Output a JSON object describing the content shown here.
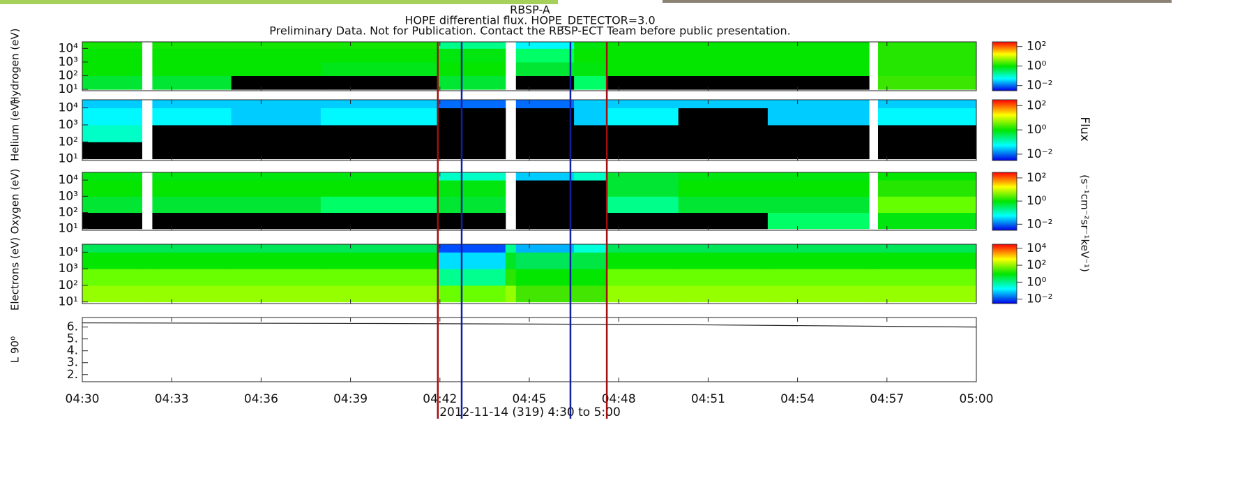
{
  "title": [
    "RBSP-A",
    "HOPE differential flux. HOPE_DETECTOR=3.0",
    "Preliminary Data. Not for Publication. Contact the RBSP-ECT Team before public presentation."
  ],
  "xlabel": "2012-11-14 (319) 4:30 to 5:00",
  "colorbar_label": "Flux",
  "colorbar_units": "(s⁻¹cm⁻²sr⁻¹keV⁻¹)",
  "xlim": [
    0,
    30
  ],
  "xticks": [
    {
      "value": 0,
      "label": "04:30"
    },
    {
      "value": 3,
      "label": "04:33"
    },
    {
      "value": 6,
      "label": "04:36"
    },
    {
      "value": 9,
      "label": "04:39"
    },
    {
      "value": 12,
      "label": "04:42"
    },
    {
      "value": 15,
      "label": "04:45"
    },
    {
      "value": 18,
      "label": "04:48"
    },
    {
      "value": 21,
      "label": "04:51"
    },
    {
      "value": 24,
      "label": "04:54"
    },
    {
      "value": 27,
      "label": "04:57"
    },
    {
      "value": 30,
      "label": "05:00"
    }
  ],
  "vertical_lines": [
    {
      "x": 11.93,
      "color": "#a01010"
    },
    {
      "x": 12.73,
      "color": "#1020a0"
    },
    {
      "x": 16.38,
      "color": "#1020a0"
    },
    {
      "x": 17.6,
      "color": "#a01010"
    }
  ],
  "chart_data": [
    {
      "type": "spectrogram",
      "ylabel": "Hydrogen (eV)",
      "log_y": true,
      "x_bins": [
        0,
        2,
        2.35,
        5,
        8,
        11.9,
        14.2,
        14.55,
        16.5,
        17.6,
        20,
        23,
        26.4,
        26.7,
        30
      ],
      "energy_bins": [
        10,
        100,
        1000,
        10000,
        30000
      ],
      "values": [
        [
          0.5,
          null,
          0.5,
          0,
          0,
          0.5,
          null,
          0,
          0.3,
          0,
          0,
          0,
          null,
          2
        ],
        [
          1,
          null,
          1,
          1,
          0.7,
          1,
          null,
          0.5,
          0.8,
          1,
          1,
          1,
          null,
          1.5
        ],
        [
          1,
          null,
          1,
          1,
          1,
          0.8,
          null,
          0.3,
          1,
          1,
          1,
          1,
          null,
          1.5
        ],
        [
          1.2,
          null,
          1.2,
          1.2,
          1.2,
          0.2,
          null,
          0.05,
          0.8,
          1,
          1,
          1,
          null,
          1.5
        ]
      ],
      "ylim": [
        8,
        30000
      ],
      "yticks": [
        {
          "value": 10,
          "label": "10¹"
        },
        {
          "value": 100,
          "label": "10²"
        },
        {
          "value": 1000,
          "label": "10³"
        },
        {
          "value": 10000,
          "label": "10⁴"
        }
      ],
      "clim": [
        0.003,
        300
      ],
      "cticks": [
        {
          "value": 0.01,
          "label": "10⁻²"
        },
        {
          "value": 1,
          "label": "10⁰"
        },
        {
          "value": 100,
          "label": "10²"
        }
      ]
    },
    {
      "type": "spectrogram",
      "ylabel": "Helium (eV)",
      "log_y": true,
      "x_bins": [
        0,
        2,
        2.35,
        5,
        8,
        11.9,
        14.2,
        14.55,
        16.5,
        17.6,
        20,
        23,
        26.4,
        26.7,
        30
      ],
      "energy_bins": [
        10,
        100,
        1000,
        10000,
        30000
      ],
      "values": [
        [
          0,
          null,
          0,
          0,
          0,
          0,
          null,
          0,
          0,
          0,
          0,
          0,
          null,
          0
        ],
        [
          0.1,
          null,
          0,
          0,
          0,
          0,
          null,
          0,
          0,
          0,
          0,
          0,
          null,
          0
        ],
        [
          0.05,
          null,
          0.05,
          0.03,
          0.05,
          0,
          null,
          0,
          0.03,
          0.05,
          0,
          0.03,
          null,
          0.05
        ],
        [
          0.03,
          null,
          0.03,
          0.03,
          0.03,
          0.01,
          null,
          0.01,
          0.03,
          0.03,
          0.03,
          0.03,
          null,
          0.03
        ]
      ],
      "ylim": [
        8,
        30000
      ],
      "yticks": [
        {
          "value": 10,
          "label": "10¹"
        },
        {
          "value": 100,
          "label": "10²"
        },
        {
          "value": 1000,
          "label": "10³"
        },
        {
          "value": 10000,
          "label": "10⁴"
        }
      ],
      "clim": [
        0.003,
        300
      ],
      "cticks": [
        {
          "value": 0.01,
          "label": "10⁻²"
        },
        {
          "value": 1,
          "label": "10⁰"
        },
        {
          "value": 100,
          "label": "10²"
        }
      ]
    },
    {
      "type": "spectrogram",
      "ylabel": "Oxygen (eV)",
      "log_y": true,
      "x_bins": [
        0,
        2,
        2.35,
        5,
        8,
        11.9,
        14.2,
        14.55,
        16.5,
        17.6,
        20,
        23,
        26.4,
        26.7,
        30
      ],
      "energy_bins": [
        10,
        100,
        1000,
        10000,
        30000
      ],
      "values": [
        [
          0,
          null,
          0,
          0,
          0,
          0,
          null,
          0,
          0,
          0,
          0,
          0.3,
          null,
          0.8
        ],
        [
          0.5,
          null,
          0.5,
          0.5,
          0.3,
          0.5,
          null,
          0,
          0,
          0.2,
          0.5,
          0.5,
          null,
          3
        ],
        [
          1,
          null,
          1,
          1,
          1,
          0.8,
          null,
          0,
          0,
          0.5,
          1,
          1,
          null,
          1.5
        ],
        [
          0.8,
          null,
          0.8,
          0.8,
          0.8,
          0.1,
          null,
          0.03,
          0.1,
          0.5,
          0.8,
          0.8,
          null,
          1
        ]
      ],
      "ylim": [
        8,
        30000
      ],
      "yticks": [
        {
          "value": 10,
          "label": "10¹"
        },
        {
          "value": 100,
          "label": "10²"
        },
        {
          "value": 1000,
          "label": "10³"
        },
        {
          "value": 10000,
          "label": "10⁴"
        }
      ],
      "clim": [
        0.003,
        300
      ],
      "cticks": [
        {
          "value": 0.01,
          "label": "10⁻²"
        },
        {
          "value": 1,
          "label": "10⁰"
        },
        {
          "value": 100,
          "label": "10²"
        }
      ]
    },
    {
      "type": "spectrogram",
      "ylabel": "Electrons (eV)",
      "log_y": true,
      "x_bins": [
        0,
        2,
        2.35,
        5,
        8,
        11.9,
        14.2,
        14.55,
        16.5,
        17.6,
        20,
        23,
        26.4,
        26.7,
        30
      ],
      "energy_bins": [
        10,
        100,
        1000,
        10000,
        30000
      ],
      "values": [
        [
          100,
          100,
          100,
          100,
          100,
          50,
          100,
          30,
          30,
          100,
          100,
          100,
          100,
          100
        ],
        [
          50,
          50,
          50,
          50,
          50,
          1,
          20,
          10,
          10,
          50,
          50,
          50,
          50,
          50
        ],
        [
          10,
          10,
          10,
          10,
          10,
          0.1,
          5,
          2,
          3,
          10,
          10,
          10,
          10,
          10
        ],
        [
          2,
          2,
          2,
          2,
          2,
          0.01,
          1,
          0.05,
          0.3,
          2,
          2,
          2,
          2,
          2
        ]
      ],
      "ylim": [
        8,
        30000
      ],
      "yticks": [
        {
          "value": 10,
          "label": "10¹"
        },
        {
          "value": 100,
          "label": "10²"
        },
        {
          "value": 1000,
          "label": "10³"
        },
        {
          "value": 10000,
          "label": "10⁴"
        }
      ],
      "clim": [
        0.003,
        30000
      ],
      "cticks": [
        {
          "value": 0.01,
          "label": "10⁻²"
        },
        {
          "value": 1,
          "label": "10⁰"
        },
        {
          "value": 100,
          "label": "10²"
        },
        {
          "value": 10000,
          "label": "10⁴"
        }
      ]
    },
    {
      "type": "line",
      "ylabel": "L 90⁰",
      "color": "#222222",
      "x": [
        0,
        10,
        20,
        30
      ],
      "values": [
        6.35,
        6.3,
        6.2,
        6.0
      ],
      "ylim": [
        1.4,
        6.8
      ],
      "yticks": [
        {
          "value": 2,
          "label": "2."
        },
        {
          "value": 3,
          "label": "3."
        },
        {
          "value": 4,
          "label": "4."
        },
        {
          "value": 5,
          "label": "5."
        },
        {
          "value": 6,
          "label": "6."
        }
      ]
    }
  ]
}
